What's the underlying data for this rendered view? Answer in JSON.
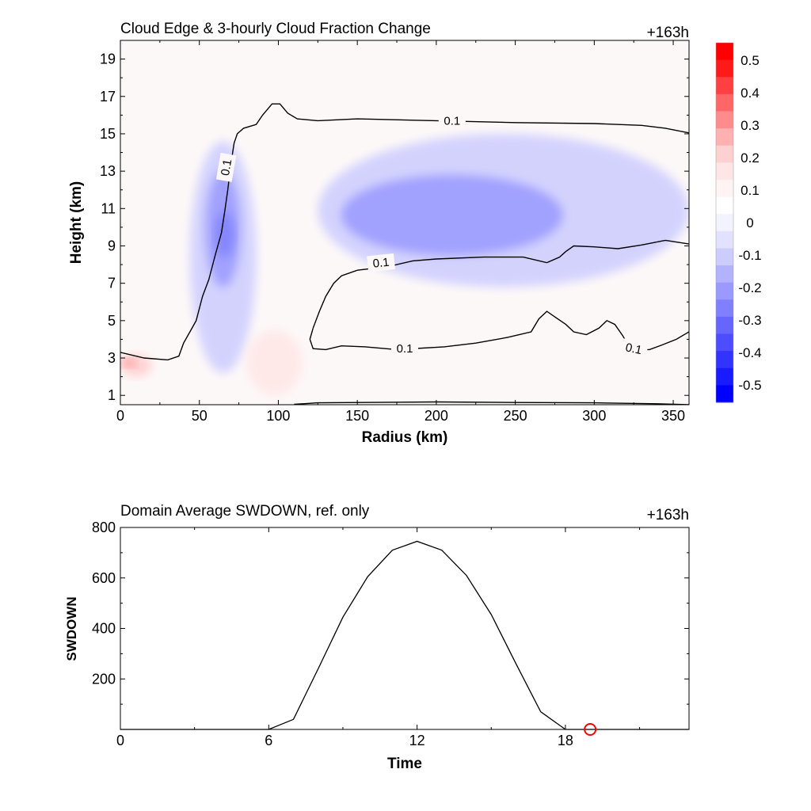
{
  "top_panel": {
    "title": "Cloud Edge & 3-hourly Cloud Fraction Change",
    "time_tag": "+163h",
    "xlabel": "Radius (km)",
    "ylabel": "Height (km)",
    "xticks": [
      "0",
      "50",
      "100",
      "150",
      "200",
      "250",
      "300",
      "350"
    ],
    "yticks": [
      "1",
      "3",
      "5",
      "7",
      "9",
      "11",
      "13",
      "15",
      "17",
      "19"
    ],
    "contour_label": "0.1"
  },
  "colorbar": {
    "labels": [
      "0.5",
      "0.4",
      "0.3",
      "0.2",
      "0.1",
      "0",
      "-0.1",
      "-0.2",
      "-0.3",
      "-0.4",
      "-0.5"
    ],
    "colors": [
      "#ff0000",
      "#ff1a1a",
      "#ff4040",
      "#ff6666",
      "#ff8c8c",
      "#ffb0b0",
      "#ffd0d0",
      "#ffe6e6",
      "#fff3f3",
      "#ffffff",
      "#f3f3ff",
      "#e2e2ff",
      "#ccccff",
      "#b2b2ff",
      "#9999ff",
      "#8080ff",
      "#6666ff",
      "#4d4dff",
      "#3333ff",
      "#1a1aff",
      "#0000ff"
    ]
  },
  "bottom_panel": {
    "title": "Domain Average SWDOWN, ref. only",
    "time_tag": "+163h",
    "xlabel": "Time",
    "ylabel": "SWDOWN",
    "xticks": [
      "0",
      "6",
      "12",
      "18"
    ],
    "yticks": [
      "200",
      "400",
      "600",
      "800"
    ]
  },
  "chart_data": [
    {
      "type": "heatmap",
      "title": "Cloud Edge & 3-hourly Cloud Fraction Change",
      "xlabel": "Radius (km)",
      "ylabel": "Height (km)",
      "xlim": [
        0,
        360
      ],
      "ylim": [
        0.5,
        20
      ],
      "colorbar_range": [
        -0.5,
        0.5
      ],
      "contour_level": 0.1,
      "contour_lines": [
        {
          "name": "upper",
          "points": [
            [
              0,
              3.3
            ],
            [
              15,
              3.0
            ],
            [
              30,
              2.9
            ],
            [
              37,
              3.1
            ],
            [
              40,
              3.8
            ],
            [
              44,
              4.4
            ],
            [
              48,
              5.0
            ],
            [
              52,
              6.3
            ],
            [
              56,
              7.2
            ],
            [
              60,
              8.5
            ],
            [
              64,
              9.7
            ],
            [
              66,
              10.8
            ],
            [
              68,
              12.0
            ],
            [
              70,
              13.4
            ],
            [
              72,
              14.5
            ],
            [
              74,
              15.0
            ],
            [
              78,
              15.3
            ],
            [
              86,
              15.5
            ],
            [
              90,
              16.0
            ],
            [
              96,
              16.6
            ],
            [
              101,
              16.6
            ],
            [
              106,
              16.1
            ],
            [
              112,
              15.8
            ],
            [
              125,
              15.7
            ],
            [
              150,
              15.8
            ],
            [
              200,
              15.7
            ],
            [
              250,
              15.6
            ],
            [
              300,
              15.55
            ],
            [
              330,
              15.45
            ],
            [
              345,
              15.3
            ],
            [
              360,
              15.05
            ]
          ]
        },
        {
          "name": "middle",
          "points": [
            [
              122,
              4.6
            ],
            [
              126,
              5.5
            ],
            [
              130,
              6.3
            ],
            [
              135,
              7.0
            ],
            [
              140,
              7.4
            ],
            [
              150,
              7.7
            ],
            [
              170,
              7.9
            ],
            [
              185,
              8.2
            ],
            [
              200,
              8.3
            ],
            [
              230,
              8.4
            ],
            [
              255,
              8.4
            ],
            [
              270,
              8.1
            ],
            [
              278,
              8.4
            ],
            [
              282,
              8.7
            ],
            [
              287,
              9.0
            ],
            [
              300,
              8.95
            ],
            [
              315,
              8.85
            ],
            [
              330,
              9.05
            ],
            [
              345,
              9.3
            ],
            [
              360,
              9.1
            ]
          ]
        },
        {
          "name": "lower",
          "points": [
            [
              122,
              4.6
            ],
            [
              120,
              4.0
            ],
            [
              122,
              3.5
            ],
            [
              130,
              3.45
            ],
            [
              140,
              3.65
            ],
            [
              155,
              3.6
            ],
            [
              175,
              3.45
            ],
            [
              205,
              3.6
            ],
            [
              225,
              3.8
            ],
            [
              245,
              4.1
            ],
            [
              260,
              4.4
            ],
            [
              265,
              5.1
            ],
            [
              270,
              5.5
            ],
            [
              275,
              5.2
            ],
            [
              282,
              4.8
            ],
            [
              287,
              4.4
            ],
            [
              295,
              4.25
            ],
            [
              303,
              4.6
            ],
            [
              308,
              5.0
            ],
            [
              313,
              4.8
            ],
            [
              318,
              4.2
            ],
            [
              322,
              3.6
            ],
            [
              327,
              3.45
            ],
            [
              335,
              3.45
            ],
            [
              343,
              3.7
            ],
            [
              352,
              4.0
            ],
            [
              360,
              4.4
            ]
          ]
        },
        {
          "name": "bottom",
          "points": [
            [
              110,
              0.52
            ],
            [
              125,
              0.6
            ],
            [
              200,
              0.65
            ],
            [
              250,
              0.62
            ],
            [
              300,
              0.6
            ],
            [
              340,
              0.55
            ],
            [
              360,
              0.5
            ]
          ]
        }
      ],
      "regions": [
        {
          "value": -0.1,
          "x": [
            44,
            86
          ],
          "y": [
            2.2,
            14.6
          ]
        },
        {
          "value": -0.2,
          "x": [
            54,
            76
          ],
          "y": [
            6.8,
            13.0
          ]
        },
        {
          "value": -0.25,
          "x": [
            60,
            72
          ],
          "y": [
            8.4,
            10.8
          ]
        },
        {
          "value": -0.1,
          "x": [
            125,
            360
          ],
          "y": [
            6.8,
            15.0
          ]
        },
        {
          "value": -0.2,
          "x": [
            140,
            280
          ],
          "y": [
            8.5,
            12.8
          ]
        },
        {
          "value": 0.1,
          "x": [
            0,
            20
          ],
          "y": [
            2.0,
            3.2
          ]
        },
        {
          "value": 0.2,
          "x": [
            0,
            10
          ],
          "y": [
            2.5,
            3.0
          ]
        },
        {
          "value": 0.05,
          "x": [
            80,
            115
          ],
          "y": [
            1.0,
            4.5
          ]
        }
      ]
    },
    {
      "type": "line",
      "title": "Domain Average SWDOWN, ref. only",
      "xlabel": "Time",
      "ylabel": "SWDOWN",
      "xlim": [
        0,
        23
      ],
      "ylim": [
        0,
        800
      ],
      "series": [
        {
          "x": [
            0,
            1,
            2,
            3,
            4,
            5,
            6,
            7,
            8,
            9,
            10,
            11,
            12,
            13,
            14,
            15,
            16,
            17,
            18,
            19,
            20,
            21,
            22,
            23
          ],
          "values": [
            0,
            0,
            0,
            0,
            0,
            0,
            0,
            40,
            240,
            445,
            605,
            710,
            745,
            710,
            610,
            455,
            260,
            70,
            0,
            0,
            0,
            0,
            0,
            0
          ]
        }
      ],
      "marker": {
        "x": 19,
        "y": 0,
        "color": "#ff0000"
      }
    }
  ]
}
